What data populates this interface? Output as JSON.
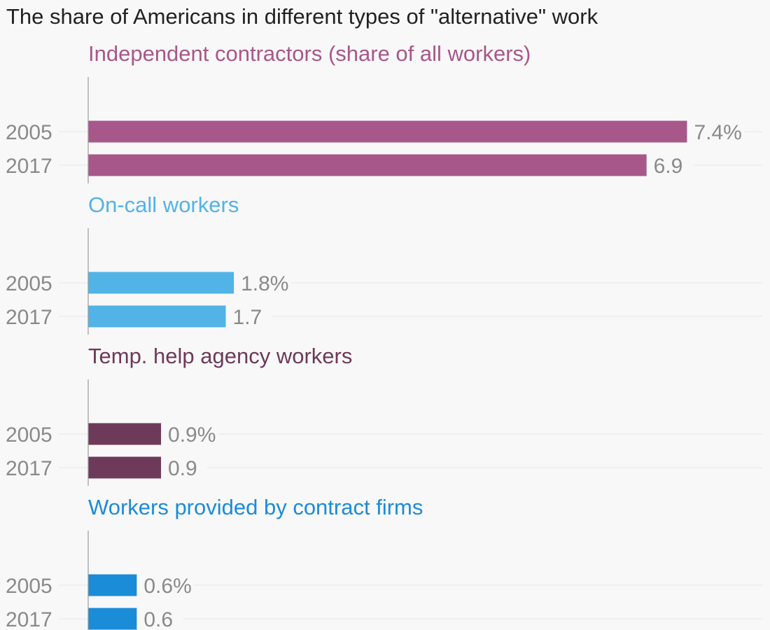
{
  "chart_data": {
    "type": "bar",
    "orientation": "horizontal",
    "title": "The share of Americans in different types of \"alternative\" work",
    "categories": [
      "2005",
      "2017"
    ],
    "unit": "%",
    "panels": [
      {
        "name": "Independent contractors (share of all workers)",
        "color": "#a8578a",
        "values": [
          7.4,
          6.9
        ],
        "value_labels": [
          "7.4%",
          "6.9"
        ]
      },
      {
        "name": "On-call workers",
        "color": "#52b3e6",
        "values": [
          1.8,
          1.7
        ],
        "value_labels": [
          "1.8%",
          "1.7"
        ]
      },
      {
        "name": "Temp. help agency workers",
        "color": "#6e3a5a",
        "values": [
          0.9,
          0.9
        ],
        "value_labels": [
          "0.9%",
          "0.9"
        ]
      },
      {
        "name": "Workers provided by contract firms",
        "color": "#1a8cd8",
        "values": [
          0.6,
          0.6
        ],
        "value_labels": [
          "0.6%",
          "0.6"
        ]
      }
    ],
    "grid": true,
    "legend": "none"
  }
}
